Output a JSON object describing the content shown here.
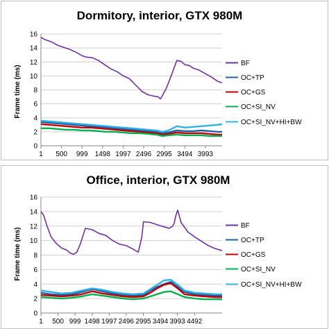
{
  "chart_data": [
    {
      "type": "line",
      "title": "Dormitory, interior, GTX 980M",
      "xlabel": "",
      "ylabel": "Frame time (ms)",
      "ylim": [
        0,
        16
      ],
      "yticks": [
        0,
        2,
        4,
        6,
        8,
        10,
        12,
        14,
        16
      ],
      "xlim": [
        1,
        4400
      ],
      "xticks": [
        1,
        500,
        999,
        1498,
        1997,
        2496,
        2995,
        3494,
        3993
      ],
      "grid": "horizontal",
      "legend": "right",
      "series": [
        {
          "name": "BF",
          "color": "#7030a0",
          "x": [
            1,
            100,
            250,
            400,
            550,
            700,
            850,
            1000,
            1100,
            1250,
            1400,
            1550,
            1700,
            1850,
            2000,
            2150,
            2300,
            2450,
            2600,
            2750,
            2850,
            2900,
            2950,
            3050,
            3150,
            3300,
            3400,
            3500,
            3600,
            3700,
            3850,
            4000,
            4150,
            4300,
            4400
          ],
          "y": [
            15.5,
            15.2,
            14.9,
            14.4,
            14.1,
            13.8,
            13.4,
            12.9,
            12.7,
            12.6,
            12.2,
            11.6,
            11.0,
            10.6,
            10.0,
            9.6,
            8.7,
            7.8,
            7.3,
            7.1,
            7.0,
            6.7,
            7.2,
            8.3,
            9.8,
            12.2,
            12.1,
            11.6,
            11.5,
            11.1,
            10.8,
            10.3,
            9.8,
            9.2,
            9.0
          ]
        },
        {
          "name": "OC+TP",
          "color": "#1f5fa8",
          "x": [
            1,
            200,
            400,
            600,
            800,
            1000,
            1200,
            1400,
            1600,
            1800,
            2000,
            2200,
            2400,
            2600,
            2800,
            2950,
            3100,
            3300,
            3500,
            3700,
            3900,
            4100,
            4300,
            4400
          ],
          "y": [
            3.4,
            3.3,
            3.2,
            3.1,
            3.0,
            2.9,
            2.8,
            2.7,
            2.6,
            2.5,
            2.4,
            2.3,
            2.2,
            2.1,
            2.0,
            1.8,
            1.9,
            2.2,
            2.1,
            2.1,
            2.2,
            2.1,
            2.0,
            2.0
          ]
        },
        {
          "name": "OC+GS",
          "color": "#c00000",
          "x": [
            1,
            200,
            400,
            600,
            800,
            1000,
            1200,
            1400,
            1600,
            1800,
            2000,
            2200,
            2400,
            2600,
            2800,
            2950,
            3100,
            3300,
            3500,
            3700,
            3900,
            4100,
            4300,
            4400
          ],
          "y": [
            3.1,
            3.0,
            2.9,
            2.8,
            2.7,
            2.6,
            2.6,
            2.5,
            2.4,
            2.3,
            2.2,
            2.1,
            2.0,
            1.9,
            1.8,
            1.6,
            1.7,
            1.9,
            1.8,
            1.8,
            1.8,
            1.7,
            1.6,
            1.6
          ]
        },
        {
          "name": "OC+SI_NV",
          "color": "#00b050",
          "x": [
            1,
            200,
            400,
            600,
            800,
            1000,
            1200,
            1400,
            1600,
            1800,
            2000,
            2200,
            2400,
            2600,
            2800,
            2950,
            3100,
            3300,
            3500,
            3700,
            3900,
            4100,
            4300,
            4400
          ],
          "y": [
            2.5,
            2.5,
            2.4,
            2.3,
            2.3,
            2.2,
            2.2,
            2.1,
            2.0,
            2.0,
            1.9,
            1.8,
            1.8,
            1.7,
            1.6,
            1.4,
            1.5,
            1.6,
            1.5,
            1.5,
            1.5,
            1.4,
            1.4,
            1.4
          ]
        },
        {
          "name": "OC+SI_NV+HI+BW",
          "color": "#33b0e0",
          "x": [
            1,
            200,
            400,
            600,
            800,
            1000,
            1200,
            1400,
            1600,
            1800,
            2000,
            2200,
            2400,
            2600,
            2800,
            2950,
            3100,
            3300,
            3500,
            3700,
            3900,
            4100,
            4300,
            4400
          ],
          "y": [
            3.6,
            3.5,
            3.4,
            3.3,
            3.2,
            3.1,
            3.0,
            2.9,
            2.8,
            2.7,
            2.6,
            2.5,
            2.4,
            2.3,
            2.2,
            2.0,
            2.2,
            2.8,
            2.6,
            2.7,
            2.8,
            2.9,
            3.0,
            3.1
          ]
        }
      ]
    },
    {
      "type": "line",
      "title": "Office, interior, GTX 980M",
      "xlabel": "",
      "ylabel": "Frame time (ms)",
      "ylim": [
        0,
        16
      ],
      "yticks": [
        0,
        2,
        4,
        6,
        8,
        10,
        12,
        14,
        16
      ],
      "xlim": [
        1,
        5300
      ],
      "xticks": [
        1,
        500,
        999,
        1498,
        1997,
        2496,
        2995,
        3494,
        3993,
        4492
      ],
      "grid": "horizontal",
      "legend": "right",
      "series": [
        {
          "name": "BF",
          "color": "#7030a0",
          "x": [
            1,
            80,
            180,
            300,
            450,
            600,
            750,
            850,
            950,
            1050,
            1150,
            1300,
            1500,
            1700,
            1900,
            2100,
            2300,
            2500,
            2700,
            2850,
            2950,
            3000,
            3200,
            3400,
            3600,
            3750,
            3850,
            3900,
            3950,
            4000,
            4100,
            4300,
            4500,
            4700,
            4900,
            5100,
            5300
          ],
          "y": [
            14.0,
            13.5,
            12.0,
            10.5,
            9.6,
            9.0,
            8.7,
            8.3,
            8.1,
            8.4,
            9.5,
            11.7,
            11.5,
            11.0,
            10.7,
            10.0,
            9.5,
            9.3,
            8.8,
            8.4,
            10.5,
            12.6,
            12.5,
            12.2,
            11.9,
            11.7,
            12.0,
            12.4,
            13.5,
            14.2,
            12.5,
            11.2,
            10.5,
            9.9,
            9.3,
            8.9,
            8.6
          ]
        },
        {
          "name": "OC+TP",
          "color": "#1f5fa8",
          "x": [
            1,
            300,
            600,
            900,
            1200,
            1500,
            1800,
            2100,
            2400,
            2700,
            3000,
            3200,
            3400,
            3600,
            3800,
            4000,
            4200,
            4500,
            4800,
            5100,
            5300
          ],
          "y": [
            2.8,
            2.6,
            2.5,
            2.6,
            2.9,
            3.3,
            3.0,
            2.7,
            2.5,
            2.4,
            2.5,
            3.1,
            3.6,
            4.0,
            4.3,
            3.6,
            2.9,
            2.6,
            2.5,
            2.4,
            2.4
          ]
        },
        {
          "name": "OC+GS",
          "color": "#c00000",
          "x": [
            1,
            300,
            600,
            900,
            1200,
            1500,
            1800,
            2100,
            2400,
            2700,
            3000,
            3200,
            3400,
            3600,
            3800,
            4000,
            4200,
            4500,
            4800,
            5100,
            5300
          ],
          "y": [
            2.5,
            2.4,
            2.3,
            2.4,
            2.6,
            3.0,
            2.7,
            2.5,
            2.3,
            2.2,
            2.3,
            2.8,
            3.4,
            3.9,
            4.1,
            3.4,
            2.6,
            2.4,
            2.3,
            2.2,
            2.2
          ]
        },
        {
          "name": "OC+SI_NV",
          "color": "#00b050",
          "x": [
            1,
            300,
            600,
            900,
            1200,
            1500,
            1800,
            2100,
            2400,
            2700,
            3000,
            3200,
            3400,
            3600,
            3800,
            4000,
            4200,
            4500,
            4800,
            5100,
            5300
          ],
          "y": [
            2.2,
            2.1,
            2.0,
            2.1,
            2.3,
            2.6,
            2.4,
            2.2,
            2.0,
            1.9,
            2.0,
            2.3,
            2.6,
            2.9,
            3.0,
            2.6,
            2.2,
            2.0,
            1.9,
            1.9,
            1.9
          ]
        },
        {
          "name": "OC+SI_NV+HI+BW",
          "color": "#33b0e0",
          "x": [
            1,
            300,
            600,
            900,
            1200,
            1500,
            1800,
            2100,
            2400,
            2700,
            3000,
            3200,
            3400,
            3600,
            3800,
            4000,
            4200,
            4500,
            4800,
            5100,
            5300
          ],
          "y": [
            3.1,
            2.9,
            2.7,
            2.8,
            3.1,
            3.4,
            3.2,
            2.9,
            2.7,
            2.6,
            2.7,
            3.3,
            3.9,
            4.5,
            4.6,
            3.9,
            3.1,
            2.8,
            2.7,
            2.6,
            2.6
          ]
        }
      ]
    }
  ]
}
